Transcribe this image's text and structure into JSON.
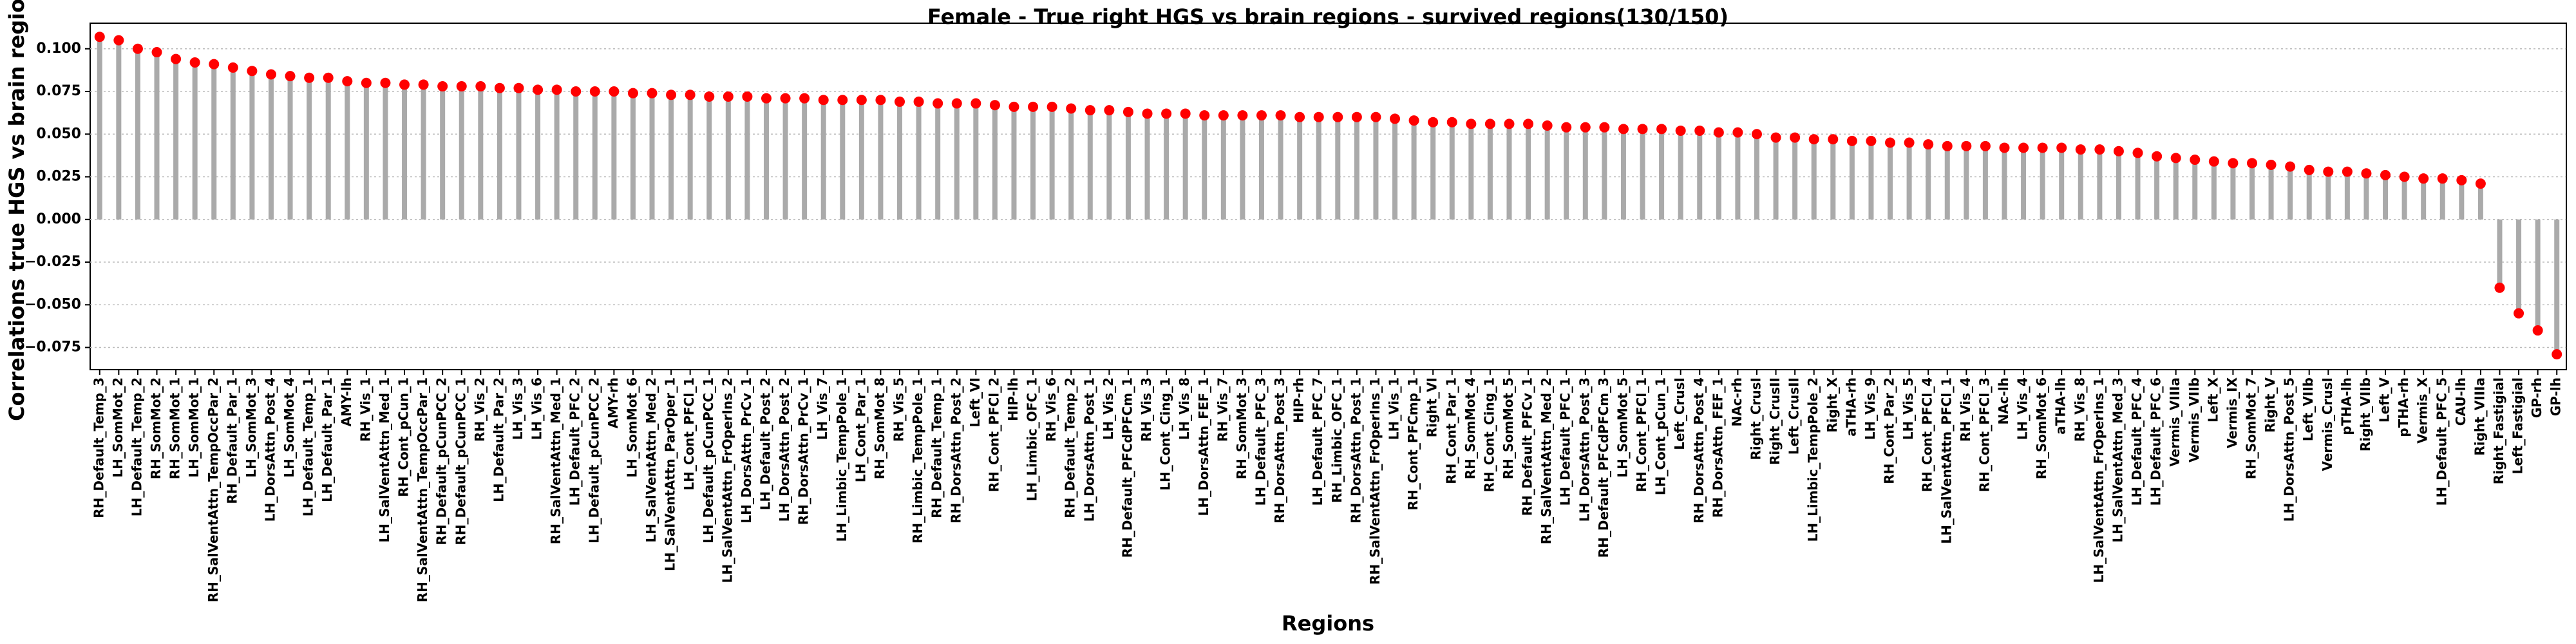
{
  "chart_data": {
    "type": "lollipop",
    "title": "Female - True right HGS vs brain regions - survived regions(130/150)",
    "xlabel": "Regions",
    "ylabel": "Correlations true HGS vs brain regions",
    "categories": [
      "RH_Default_Temp_3",
      "LH_SomMot_2",
      "LH_Default_Temp_2",
      "RH_SomMot_2",
      "RH_SomMot_1",
      "LH_SomMot_1",
      "RH_SalVentAttn_TempOccPar_2",
      "RH_Default_Par_1",
      "LH_SomMot_3",
      "LH_DorsAttn_Post_4",
      "LH_SomMot_4",
      "LH_Default_Temp_1",
      "LH_Default_Par_1",
      "AMY-lh",
      "RH_Vis_1",
      "LH_SalVentAttn_Med_1",
      "RH_Cont_pCun_1",
      "RH_SalVentAttn_TempOccPar_1",
      "RH_Default_pCunPCC_2",
      "RH_Default_pCunPCC_1",
      "RH_Vis_2",
      "LH_Default_Par_2",
      "LH_Vis_3",
      "LH_Vis_6",
      "RH_SalVentAttn_Med_1",
      "LH_Default_PFC_2",
      "LH_Default_pCunPCC_2",
      "AMY-rh",
      "LH_SomMot_6",
      "LH_SalVentAttn_Med_2",
      "LH_SalVentAttn_ParOper_1",
      "LH_Cont_PFCl_1",
      "LH_Default_pCunPCC_1",
      "LH_SalVentAttn_FrOperIns_2",
      "LH_DorsAttn_PrCv_1",
      "LH_Default_Post_2",
      "LH_DorsAttn_Post_2",
      "RH_DorsAttn_PrCv_1",
      "LH_Vis_7",
      "LH_Limbic_TempPole_1",
      "LH_Cont_Par_1",
      "RH_SomMot_8",
      "RH_Vis_5",
      "RH_Limbic_TempPole_1",
      "RH_Default_Temp_1",
      "RH_DorsAttn_Post_2",
      "Left_VI",
      "RH_Cont_PFCl_2",
      "HIP-lh",
      "LH_Limbic_OFC_1",
      "RH_Vis_6",
      "RH_Default_Temp_2",
      "LH_DorsAttn_Post_1",
      "LH_Vis_2",
      "RH_Default_PFCdPFCm_1",
      "RH_Vis_3",
      "LH_Cont_Cing_1",
      "LH_Vis_8",
      "LH_DorsAttn_FEF_1",
      "RH_Vis_7",
      "RH_SomMot_3",
      "LH_Default_PFC_3",
      "RH_DorsAttn_Post_3",
      "HIP-rh",
      "LH_Default_PFC_7",
      "RH_Limbic_OFC_1",
      "RH_DorsAttn_Post_1",
      "RH_SalVentAttn_FrOperIns_1",
      "LH_Vis_1",
      "RH_Cont_PFCmp_1",
      "Right_VI",
      "RH_Cont_Par_1",
      "RH_SomMot_4",
      "RH_Cont_Cing_1",
      "RH_SomMot_5",
      "RH_Default_PFCv_1",
      "RH_SalVentAttn_Med_2",
      "LH_Default_PFC_1",
      "LH_DorsAttn_Post_3",
      "RH_Default_PFCdPFCm_3",
      "LH_SomMot_5",
      "RH_Cont_PFCl_1",
      "LH_Cont_pCun_1",
      "Left_CrusI",
      "RH_DorsAttn_Post_4",
      "RH_DorsAttn_FEF_1",
      "NAc-rh",
      "Right_CrusI",
      "Right_CrusII",
      "Left_CrusII",
      "LH_Limbic_TempPole_2",
      "Right_X",
      "aTHA-rh",
      "LH_Vis_9",
      "RH_Cont_Par_2",
      "LH_Vis_5",
      "RH_Cont_PFCl_4",
      "LH_SalVentAttn_PFCl_1",
      "RH_Vis_4",
      "RH_Cont_PFCl_3",
      "NAc-lh",
      "LH_Vis_4",
      "RH_SomMot_6",
      "aTHA-lh",
      "RH_Vis_8",
      "LH_SalVentAttn_FrOperIns_1",
      "LH_SalVentAttn_Med_3",
      "LH_Default_PFC_4",
      "LH_Default_PFC_6",
      "Vermis_VIIIa",
      "Vermis_VIIb",
      "Left_X",
      "Vermis_IX",
      "RH_SomMot_7",
      "Right_V",
      "LH_DorsAttn_Post_5",
      "Left_VIIb",
      "Vermis_CrusI",
      "pTHA-lh",
      "Right_VIIb",
      "Left_V",
      "pTHA-rh",
      "Vermis_X",
      "LH_Default_PFC_5",
      "CAU-lh",
      "Right_VIIIa",
      "Right_Fastigial",
      "Left_Fastigial",
      "GP-rh",
      "GP-lh"
    ],
    "values": [
      0.107,
      0.105,
      0.1,
      0.098,
      0.094,
      0.092,
      0.091,
      0.089,
      0.087,
      0.085,
      0.084,
      0.083,
      0.083,
      0.081,
      0.08,
      0.08,
      0.079,
      0.079,
      0.078,
      0.078,
      0.078,
      0.077,
      0.077,
      0.076,
      0.076,
      0.075,
      0.075,
      0.075,
      0.074,
      0.074,
      0.073,
      0.073,
      0.072,
      0.072,
      0.072,
      0.071,
      0.071,
      0.071,
      0.07,
      0.07,
      0.07,
      0.07,
      0.069,
      0.069,
      0.068,
      0.068,
      0.068,
      0.067,
      0.066,
      0.066,
      0.066,
      0.065,
      0.064,
      0.064,
      0.063,
      0.062,
      0.062,
      0.062,
      0.061,
      0.061,
      0.061,
      0.061,
      0.061,
      0.06,
      0.06,
      0.06,
      0.06,
      0.06,
      0.059,
      0.058,
      0.057,
      0.057,
      0.056,
      0.056,
      0.056,
      0.056,
      0.055,
      0.054,
      0.054,
      0.054,
      0.053,
      0.053,
      0.053,
      0.052,
      0.052,
      0.051,
      0.051,
      0.05,
      0.048,
      0.048,
      0.047,
      0.047,
      0.046,
      0.046,
      0.045,
      0.045,
      0.044,
      0.043,
      0.043,
      0.043,
      0.042,
      0.042,
      0.042,
      0.042,
      0.041,
      0.041,
      0.04,
      0.039,
      0.037,
      0.036,
      0.035,
      0.034,
      0.033,
      0.033,
      0.032,
      0.031,
      0.029,
      0.028,
      0.028,
      0.027,
      0.026,
      0.025,
      0.024,
      0.024,
      0.023,
      0.021,
      -0.04,
      -0.055,
      -0.065,
      -0.079
    ],
    "color": "#ff0000",
    "stem_color": "#aaaaaa",
    "ylim": [
      -0.088,
      0.115
    ],
    "yticks": [
      {
        "value": -0.075,
        "label": "−0.075"
      },
      {
        "value": -0.05,
        "label": "−0.050"
      },
      {
        "value": -0.025,
        "label": "−0.025"
      },
      {
        "value": 0,
        "label": "0.000"
      },
      0.025,
      {
        "value": 0.05,
        "label": "0.050"
      },
      0.075,
      {
        "value": 0.1,
        "label": "0.100"
      }
    ],
    "grid": true
  }
}
